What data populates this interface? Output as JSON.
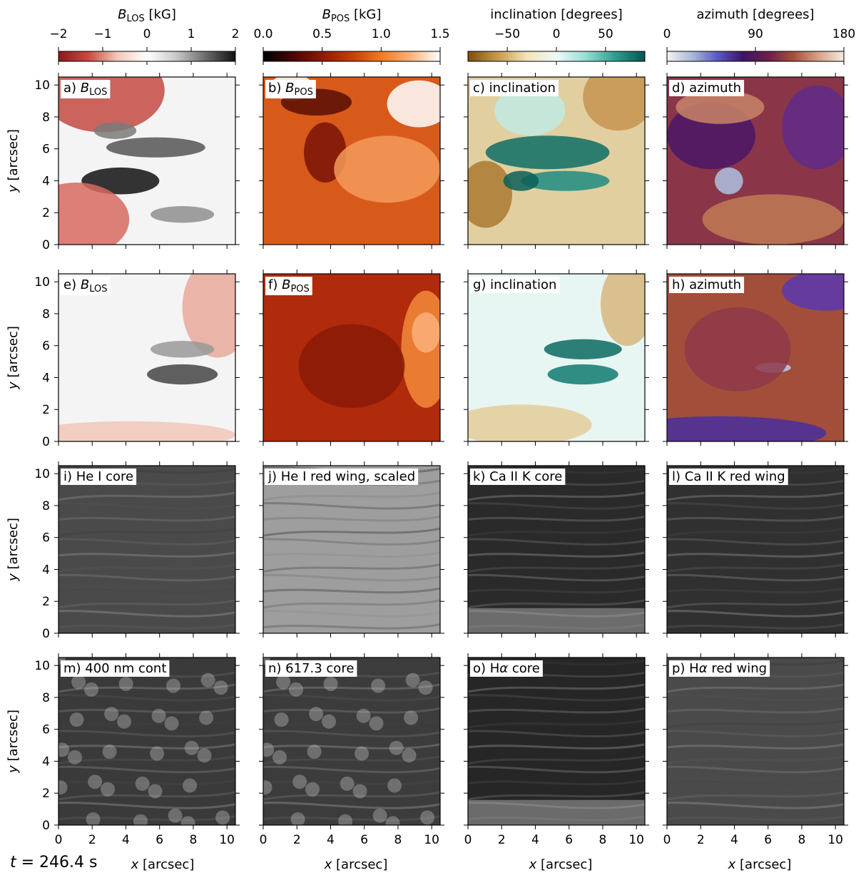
{
  "figure": {
    "time_label": "t = 246.4 s",
    "colorbars": [
      {
        "label": "B_LOS [kG]",
        "label_main": "B",
        "label_sub": "LOS",
        "label_unit": "[kG]",
        "range": [
          -2,
          2
        ],
        "ticks": [
          -2,
          -1,
          0,
          1,
          2
        ],
        "tick_labels": [
          "−2",
          "−1",
          "0",
          "1",
          "2"
        ],
        "colormap": [
          "#8b1a1a",
          "#c8483f",
          "#f2c8b8",
          "#ffffff",
          "#c9c9c9",
          "#6a6a6a",
          "#111111"
        ]
      },
      {
        "label": "B_POS [kG]",
        "label_main": "B",
        "label_sub": "POS",
        "label_unit": "[kG]",
        "range": [
          0,
          1.5
        ],
        "ticks": [
          0,
          0.5,
          1.0,
          1.5
        ],
        "tick_labels": [
          "0.0",
          "0.5",
          "1.0",
          "1.5"
        ],
        "colormap": [
          "#000000",
          "#4a0606",
          "#8e1a06",
          "#c83c08",
          "#f07a20",
          "#fbb27a",
          "#ffffff"
        ]
      },
      {
        "label": "inclination [degrees]",
        "range": [
          -90,
          90
        ],
        "ticks": [
          -50,
          0,
          50
        ],
        "tick_labels": [
          "−50",
          "0",
          "50"
        ],
        "colormap": [
          "#7d4e0c",
          "#c79a4c",
          "#f2e3b8",
          "#eefaf8",
          "#96ddd3",
          "#2f9c8f",
          "#03564e"
        ]
      },
      {
        "label": "azimuth [degrees]",
        "range": [
          0,
          180
        ],
        "ticks": [
          0,
          90,
          180
        ],
        "tick_labels": [
          "0",
          "90",
          "180"
        ],
        "colormap": [
          "#f2f2f2",
          "#a9b9d8",
          "#5b58c2",
          "#3d1466",
          "#6b1d4a",
          "#a4503a",
          "#d8a288",
          "#f3ebe3"
        ]
      }
    ],
    "panels": [
      {
        "id": "a",
        "pre": "a) ",
        "main": "B",
        "sub": "LOS"
      },
      {
        "id": "b",
        "pre": "b) ",
        "main": "B",
        "sub": "POS"
      },
      {
        "id": "c",
        "pre": "c) inclination"
      },
      {
        "id": "d",
        "pre": "d) azimuth"
      },
      {
        "id": "e",
        "pre": "e) ",
        "main": "B",
        "sub": "LOS"
      },
      {
        "id": "f",
        "pre": "f) ",
        "main": "B",
        "sub": "POS"
      },
      {
        "id": "g",
        "pre": "g) inclination"
      },
      {
        "id": "h",
        "pre": "h) azimuth"
      },
      {
        "id": "i",
        "pre": "i) He I core"
      },
      {
        "id": "j",
        "pre": "j) He I red wing, scaled"
      },
      {
        "id": "k",
        "pre": "k) Ca II K core"
      },
      {
        "id": "l",
        "pre": "l) Ca II K red wing"
      },
      {
        "id": "m",
        "pre": "m) 400 nm cont"
      },
      {
        "id": "n",
        "pre": "n) 617.3 core"
      },
      {
        "id": "o",
        "pre": "o) Hα core",
        "pre_a": "o) H",
        "greek": "α",
        "post": " core"
      },
      {
        "id": "p",
        "pre": "p) Hα red wing",
        "pre_a": "p) H",
        "greek": "α",
        "post": " red wing"
      }
    ],
    "axes": {
      "x_label": "x [arcsec]",
      "x_label_var": "x",
      "x_label_unit": " [arcsec]",
      "y_label": "y [arcsec]",
      "y_label_var": "y",
      "y_label_unit": " [arcsec]",
      "x_ticks": [
        0,
        2,
        4,
        6,
        8,
        10
      ],
      "x_tick_labels": [
        "0",
        "2",
        "4",
        "6",
        "8",
        "10"
      ],
      "y_ticks": [
        0,
        2,
        4,
        6,
        8,
        10
      ],
      "y_tick_labels": [
        "0",
        "2",
        "4",
        "6",
        "8",
        "10"
      ],
      "range": [
        0,
        10.5
      ]
    }
  }
}
